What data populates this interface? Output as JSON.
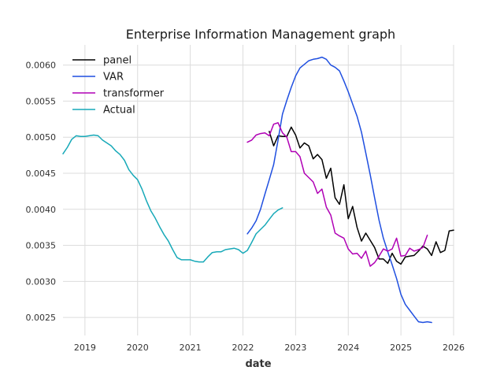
{
  "chart_data": {
    "type": "line",
    "title": "Enterprise Information Management graph",
    "xlabel": "date",
    "ylabel": "",
    "xlim": [
      "2018-08-01",
      "2026-01-01"
    ],
    "ylim": [
      0.00225,
      0.00628
    ],
    "x_ticks": [
      "2019",
      "2020",
      "2021",
      "2022",
      "2023",
      "2024",
      "2025",
      "2026"
    ],
    "y_ticks": [
      "0.0025",
      "0.0030",
      "0.0035",
      "0.0040",
      "0.0045",
      "0.0050",
      "0.0055",
      "0.0060"
    ],
    "grid": true,
    "legend_position": "top-left",
    "series": [
      {
        "name": "panel",
        "color": "#000000",
        "points": [
          [
            "2022-07",
            0.00508
          ],
          [
            "2022-08",
            0.00488
          ],
          [
            "2022-09",
            0.00502
          ],
          [
            "2022-10",
            0.00501
          ],
          [
            "2022-11",
            0.00501
          ],
          [
            "2022-12",
            0.00514
          ],
          [
            "2023-01",
            0.00503
          ],
          [
            "2023-02",
            0.00485
          ],
          [
            "2023-03",
            0.00492
          ],
          [
            "2023-04",
            0.00488
          ],
          [
            "2023-05",
            0.0047
          ],
          [
            "2023-06",
            0.00476
          ],
          [
            "2023-07",
            0.00469
          ],
          [
            "2023-08",
            0.00443
          ],
          [
            "2023-09",
            0.00457
          ],
          [
            "2023-10",
            0.00416
          ],
          [
            "2023-11",
            0.00407
          ],
          [
            "2023-12",
            0.00434
          ],
          [
            "2024-01",
            0.00387
          ],
          [
            "2024-02",
            0.00404
          ],
          [
            "2024-03",
            0.00375
          ],
          [
            "2024-04",
            0.00356
          ],
          [
            "2024-05",
            0.00367
          ],
          [
            "2024-06",
            0.00357
          ],
          [
            "2024-07",
            0.00347
          ],
          [
            "2024-08",
            0.00331
          ],
          [
            "2024-09",
            0.00331
          ],
          [
            "2024-10",
            0.00325
          ],
          [
            "2024-11",
            0.00339
          ],
          [
            "2024-12",
            0.00328
          ],
          [
            "2025-01",
            0.00324
          ],
          [
            "2025-02",
            0.00334
          ],
          [
            "2025-03",
            0.00335
          ],
          [
            "2025-04",
            0.00336
          ],
          [
            "2025-05",
            0.00342
          ],
          [
            "2025-06",
            0.00349
          ],
          [
            "2025-07",
            0.00345
          ],
          [
            "2025-08",
            0.00336
          ],
          [
            "2025-09",
            0.00355
          ],
          [
            "2025-10",
            0.0034
          ],
          [
            "2025-11",
            0.00343
          ],
          [
            "2025-12",
            0.0037
          ],
          [
            "2026-01",
            0.00371
          ]
        ]
      },
      {
        "name": "VAR",
        "color": "#1f4fe0",
        "points": [
          [
            "2022-02",
            0.00366
          ],
          [
            "2022-03",
            0.00374
          ],
          [
            "2022-04",
            0.00384
          ],
          [
            "2022-05",
            0.004
          ],
          [
            "2022-06",
            0.00421
          ],
          [
            "2022-07",
            0.00441
          ],
          [
            "2022-08",
            0.00462
          ],
          [
            "2022-09",
            0.00496
          ],
          [
            "2022-10",
            0.00532
          ],
          [
            "2022-11",
            0.00551
          ],
          [
            "2022-12",
            0.00569
          ],
          [
            "2023-01",
            0.00585
          ],
          [
            "2023-02",
            0.00596
          ],
          [
            "2023-03",
            0.00601
          ],
          [
            "2023-04",
            0.00606
          ],
          [
            "2023-05",
            0.00608
          ],
          [
            "2023-06",
            0.00609
          ],
          [
            "2023-07",
            0.00611
          ],
          [
            "2023-08",
            0.00608
          ],
          [
            "2023-09",
            0.006
          ],
          [
            "2023-10",
            0.00597
          ],
          [
            "2023-11",
            0.00592
          ],
          [
            "2023-12",
            0.00578
          ],
          [
            "2024-01",
            0.00563
          ],
          [
            "2024-02",
            0.00546
          ],
          [
            "2024-03",
            0.00529
          ],
          [
            "2024-04",
            0.00507
          ],
          [
            "2024-05",
            0.00478
          ],
          [
            "2024-06",
            0.00448
          ],
          [
            "2024-07",
            0.00416
          ],
          [
            "2024-08",
            0.00385
          ],
          [
            "2024-09",
            0.0036
          ],
          [
            "2024-10",
            0.00341
          ],
          [
            "2024-11",
            0.00323
          ],
          [
            "2024-12",
            0.00304
          ],
          [
            "2025-01",
            0.00282
          ],
          [
            "2025-02",
            0.00268
          ],
          [
            "2025-03",
            0.0026
          ],
          [
            "2025-04",
            0.00252
          ],
          [
            "2025-05",
            0.00244
          ],
          [
            "2025-06",
            0.00243
          ],
          [
            "2025-07",
            0.00244
          ],
          [
            "2025-08",
            0.00243
          ]
        ]
      },
      {
        "name": "transformer",
        "color": "#b000b5",
        "points": [
          [
            "2022-02",
            0.00493
          ],
          [
            "2022-03",
            0.00496
          ],
          [
            "2022-04",
            0.00503
          ],
          [
            "2022-05",
            0.00505
          ],
          [
            "2022-06",
            0.00506
          ],
          [
            "2022-07",
            0.00502
          ],
          [
            "2022-08",
            0.00518
          ],
          [
            "2022-09",
            0.0052
          ],
          [
            "2022-10",
            0.00506
          ],
          [
            "2022-11",
            0.005
          ],
          [
            "2022-12",
            0.0048
          ],
          [
            "2023-01",
            0.0048
          ],
          [
            "2023-02",
            0.00473
          ],
          [
            "2023-03",
            0.0045
          ],
          [
            "2023-04",
            0.00444
          ],
          [
            "2023-05",
            0.00438
          ],
          [
            "2023-06",
            0.00422
          ],
          [
            "2023-07",
            0.00428
          ],
          [
            "2023-08",
            0.00403
          ],
          [
            "2023-09",
            0.00392
          ],
          [
            "2023-10",
            0.00367
          ],
          [
            "2023-11",
            0.00363
          ],
          [
            "2023-12",
            0.0036
          ],
          [
            "2024-01",
            0.00345
          ],
          [
            "2024-02",
            0.00338
          ],
          [
            "2024-03",
            0.00339
          ],
          [
            "2024-04",
            0.00332
          ],
          [
            "2024-05",
            0.00342
          ],
          [
            "2024-06",
            0.00321
          ],
          [
            "2024-07",
            0.00326
          ],
          [
            "2024-08",
            0.00335
          ],
          [
            "2024-09",
            0.00345
          ],
          [
            "2024-10",
            0.00342
          ],
          [
            "2024-11",
            0.00345
          ],
          [
            "2024-12",
            0.0036
          ],
          [
            "2025-01",
            0.00335
          ],
          [
            "2025-02",
            0.00336
          ],
          [
            "2025-03",
            0.00346
          ],
          [
            "2025-04",
            0.00342
          ],
          [
            "2025-05",
            0.00344
          ],
          [
            "2025-06",
            0.00347
          ],
          [
            "2025-07",
            0.00364
          ]
        ]
      },
      {
        "name": "Actual",
        "color": "#17a9b8",
        "points": [
          [
            "2018-08",
            0.00477
          ],
          [
            "2018-09",
            0.00486
          ],
          [
            "2018-10",
            0.00497
          ],
          [
            "2018-11",
            0.00502
          ],
          [
            "2018-12",
            0.00501
          ],
          [
            "2019-01",
            0.00501
          ],
          [
            "2019-02",
            0.00502
          ],
          [
            "2019-03",
            0.00503
          ],
          [
            "2019-04",
            0.00502
          ],
          [
            "2019-05",
            0.00496
          ],
          [
            "2019-06",
            0.00492
          ],
          [
            "2019-07",
            0.00488
          ],
          [
            "2019-08",
            0.00481
          ],
          [
            "2019-09",
            0.00476
          ],
          [
            "2019-10",
            0.00468
          ],
          [
            "2019-11",
            0.00455
          ],
          [
            "2019-12",
            0.00447
          ],
          [
            "2020-01",
            0.00441
          ],
          [
            "2020-02",
            0.00428
          ],
          [
            "2020-03",
            0.00412
          ],
          [
            "2020-04",
            0.00398
          ],
          [
            "2020-05",
            0.00388
          ],
          [
            "2020-06",
            0.00376
          ],
          [
            "2020-07",
            0.00365
          ],
          [
            "2020-08",
            0.00356
          ],
          [
            "2020-09",
            0.00344
          ],
          [
            "2020-10",
            0.00333
          ],
          [
            "2020-11",
            0.0033
          ],
          [
            "2020-12",
            0.0033
          ],
          [
            "2021-01",
            0.0033
          ],
          [
            "2021-02",
            0.00328
          ],
          [
            "2021-03",
            0.00327
          ],
          [
            "2021-04",
            0.00327
          ],
          [
            "2021-05",
            0.00334
          ],
          [
            "2021-06",
            0.0034
          ],
          [
            "2021-07",
            0.00341
          ],
          [
            "2021-08",
            0.00341
          ],
          [
            "2021-09",
            0.00344
          ],
          [
            "2021-10",
            0.00345
          ],
          [
            "2021-11",
            0.00346
          ],
          [
            "2021-12",
            0.00344
          ],
          [
            "2022-01",
            0.00339
          ],
          [
            "2022-02",
            0.00343
          ],
          [
            "2022-03",
            0.00354
          ],
          [
            "2022-04",
            0.00366
          ],
          [
            "2022-05",
            0.00372
          ],
          [
            "2022-06",
            0.00378
          ],
          [
            "2022-07",
            0.00386
          ],
          [
            "2022-08",
            0.00394
          ],
          [
            "2022-09",
            0.00399
          ],
          [
            "2022-10",
            0.00402
          ]
        ]
      }
    ]
  }
}
